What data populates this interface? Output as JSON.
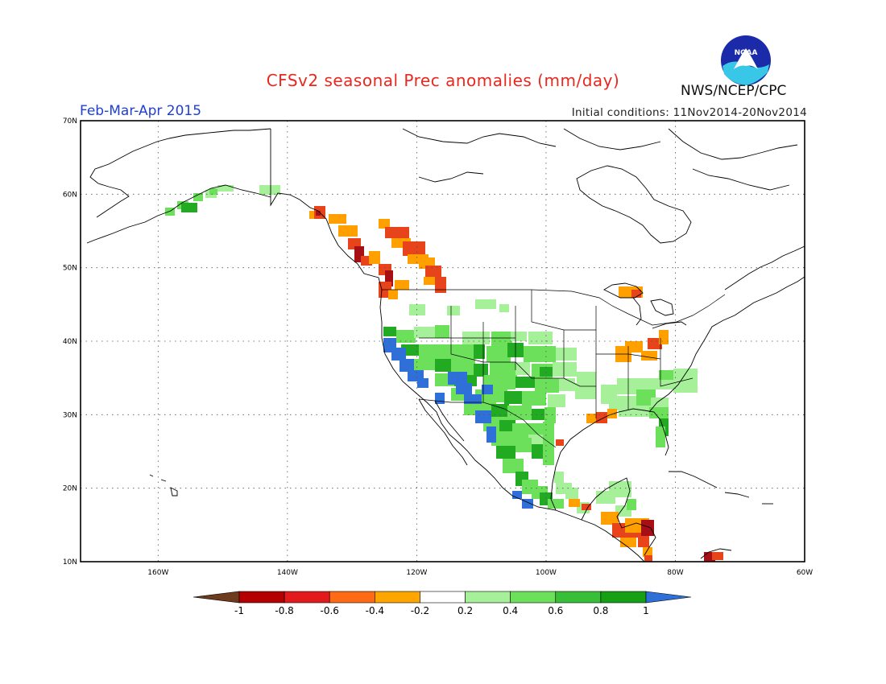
{
  "title": "CFSv2 seasonal Prec anomalies (mm/day)",
  "agency": "NWS/NCEP/CPC",
  "logo_text": "NOAA",
  "season": "Feb-Mar-Apr 2015",
  "initial_conditions": "Initial conditions: 11Nov2014-20Nov2014",
  "map": {
    "lon_range": [
      -172,
      -60
    ],
    "lat_range": [
      10,
      70
    ],
    "lat_labels": [
      "70N",
      "60N",
      "50N",
      "40N",
      "30N",
      "20N",
      "10N"
    ],
    "lon_labels": [
      "160W",
      "140W",
      "120W",
      "100W",
      "80W",
      "60W"
    ],
    "grid": "dotted"
  },
  "colorbar": {
    "labels": [
      "-1",
      "-0.8",
      "-0.6",
      "-0.4",
      "-0.2",
      "0.2",
      "0.4",
      "0.6",
      "0.8",
      "1"
    ],
    "colors": [
      "#6e3b1e",
      "#b40000",
      "#e31a1c",
      "#ff6a14",
      "#ffa500",
      "#ffffff",
      "#a6f099",
      "#6ce05a",
      "#37bf37",
      "#16a016",
      "#2f6fd8"
    ]
  },
  "anomaly_colors": {
    "dry_strong": "#a50f15",
    "dry": "#e8441b",
    "dry_weak": "#ffa000",
    "wet_weak": "#a6f099",
    "wet": "#6ce05a",
    "wet_strong": "#22aa22",
    "very_wet": "#2f6fd8"
  }
}
